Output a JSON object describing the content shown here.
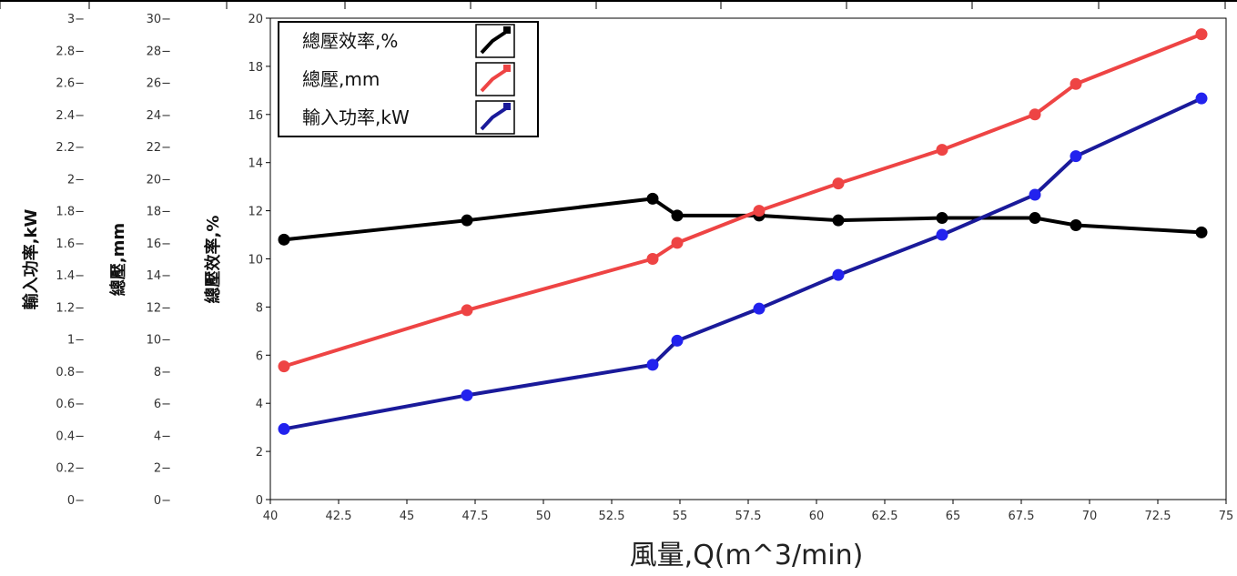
{
  "chart_data": {
    "type": "line",
    "x_axis": {
      "label": "風量,Q(m^3/min)",
      "range": [
        40,
        75
      ],
      "ticks": [
        "40",
        "42.5",
        "45",
        "47.5",
        "50",
        "52.5",
        "55",
        "57.5",
        "60",
        "62.5",
        "65",
        "67.5",
        "70",
        "72.5",
        "75"
      ]
    },
    "y_axes": [
      {
        "label": "總壓效率,%",
        "range": [
          0,
          20
        ],
        "ticks": [
          "0",
          "2",
          "4",
          "6",
          "8",
          "10",
          "12",
          "14",
          "16",
          "18",
          "20"
        ]
      },
      {
        "label": "總壓,mm",
        "range": [
          0,
          30
        ],
        "ticks": [
          "0",
          "2",
          "4",
          "6",
          "8",
          "10",
          "12",
          "14",
          "16",
          "18",
          "20",
          "22",
          "24",
          "26",
          "28",
          "30"
        ]
      },
      {
        "label": "輸入功率,kW",
        "range": [
          0,
          3
        ],
        "ticks": [
          "0",
          "0.2",
          "0.4",
          "0.6",
          "0.8",
          "1",
          "1.2",
          "1.4",
          "1.6",
          "1.8",
          "2",
          "2.2",
          "2.4",
          "2.6",
          "2.8",
          "3"
        ]
      }
    ],
    "series": [
      {
        "name": "總壓效率,%",
        "color": "#000000",
        "axis": 0,
        "x": [
          40.5,
          47.2,
          54.0,
          54.9,
          57.9,
          60.8,
          64.6,
          68.0,
          69.5,
          74.1
        ],
        "y": [
          10.8,
          11.6,
          12.5,
          11.8,
          11.8,
          11.6,
          11.7,
          11.7,
          11.4,
          11.1
        ]
      },
      {
        "name": "總壓,mm",
        "color": "#ee4444",
        "axis": 1,
        "x": [
          40.5,
          47.2,
          54.0,
          54.9,
          57.9,
          60.8,
          64.6,
          68.0,
          69.5,
          74.1
        ],
        "y": [
          8.3,
          11.8,
          15.0,
          16.0,
          18.0,
          19.7,
          21.8,
          24.0,
          25.9,
          29.0
        ]
      },
      {
        "name": "輸入功率,kW",
        "color": "#1a1a9a",
        "marker_color": "#2222ee",
        "axis": 2,
        "x": [
          40.5,
          47.2,
          54.0,
          54.9,
          57.9,
          60.8,
          64.6,
          68.0,
          69.5,
          74.1
        ],
        "y": [
          0.44,
          0.65,
          0.84,
          0.99,
          1.19,
          1.4,
          1.65,
          1.9,
          2.14,
          2.5
        ]
      }
    ],
    "legend": {
      "placement": "top-left",
      "entries": [
        "總壓效率,%",
        "總壓,mm",
        "輸入功率,kW"
      ]
    },
    "grid": "vertical lines at top border only"
  }
}
